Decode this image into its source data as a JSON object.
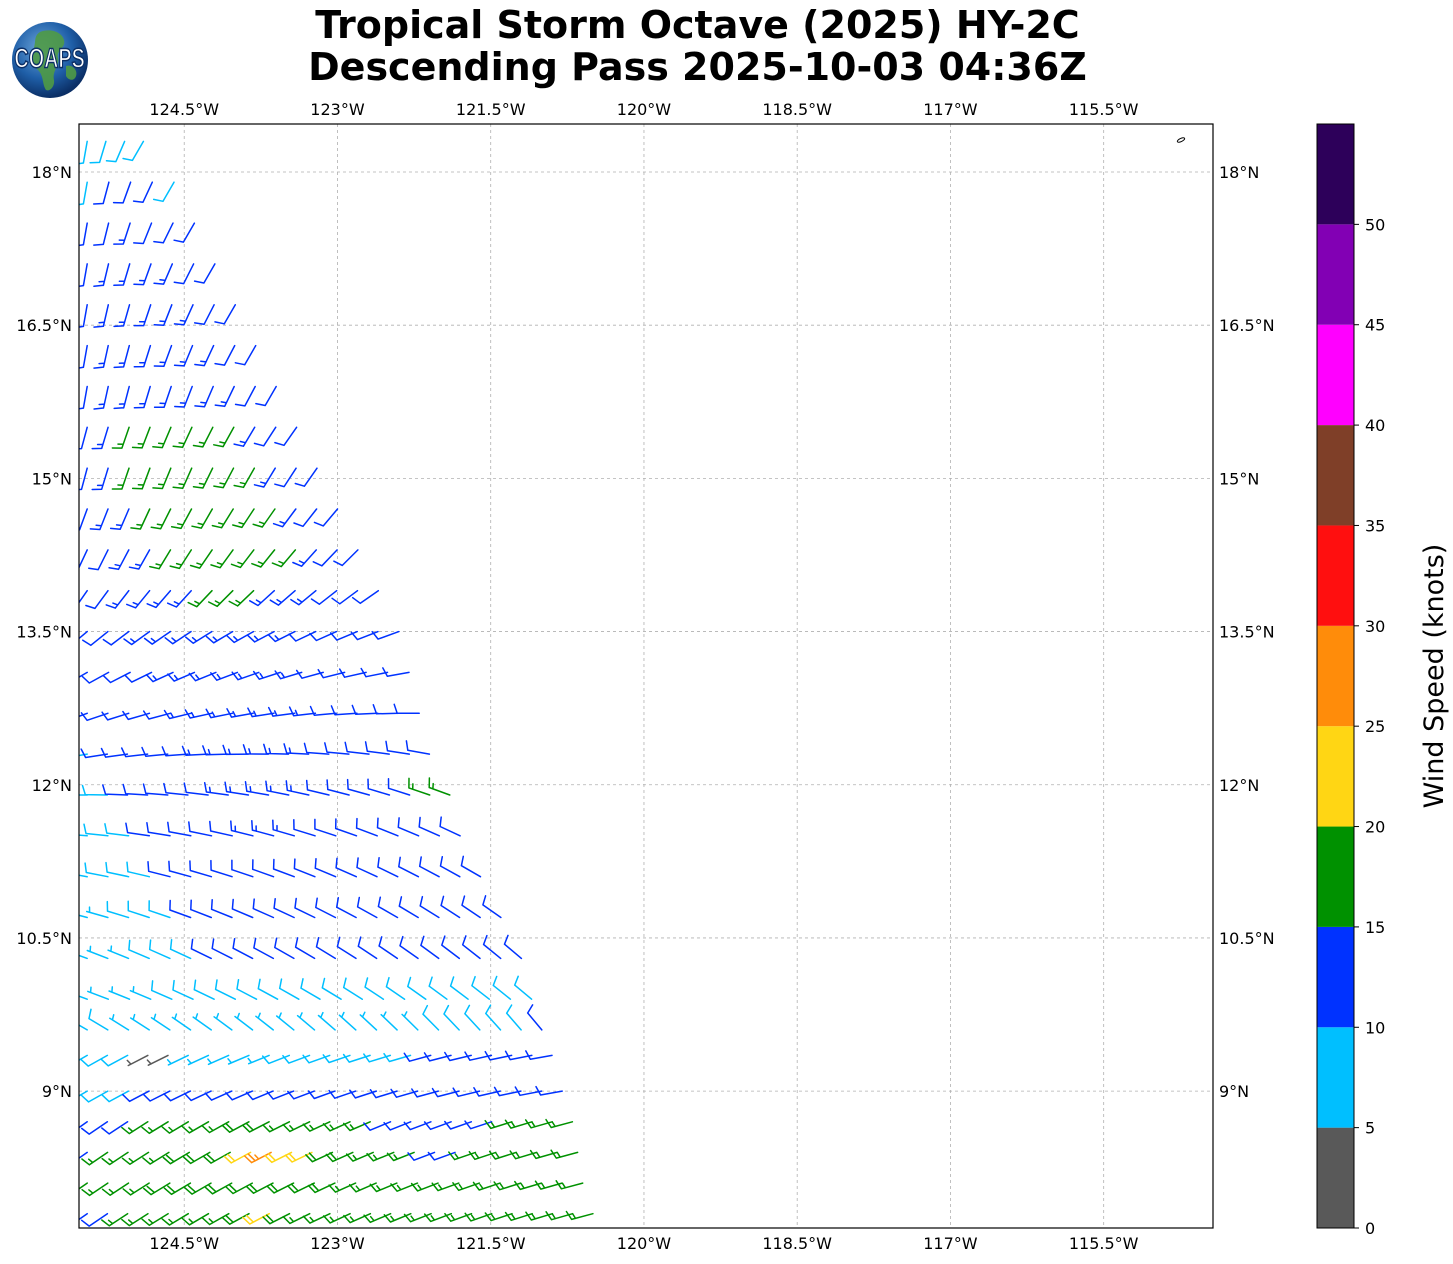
{
  "title_line1": "Tropical Storm Octave (2025) HY-2C",
  "title_line2": "Descending Pass 2025-10-03 04:36Z",
  "logo": {
    "text": "COAPS",
    "icon": "globe-icon"
  },
  "chart_data": {
    "type": "wind-barb-map",
    "x_ticks": [
      "124.5°W",
      "123°W",
      "121.5°W",
      "120°W",
      "118.5°W",
      "117°W",
      "115.5°W"
    ],
    "x_tick_values": [
      -124.5,
      -123,
      -121.5,
      -120,
      -118.5,
      -117,
      -115.5
    ],
    "y_ticks": [
      "18°N",
      "16.5°N",
      "15°N",
      "13.5°N",
      "12°N",
      "10.5°N",
      "9°N"
    ],
    "y_tick_values": [
      18,
      16.5,
      15,
      13.5,
      12,
      10.5,
      9
    ],
    "xlim": [
      -125.53,
      -114.43
    ],
    "ylim": [
      7.66,
      18.47
    ],
    "grid": true,
    "colorbar": {
      "label": "Wind Speed (knots)",
      "ticks": [
        "0",
        "5",
        "10",
        "15",
        "20",
        "25",
        "30",
        "35",
        "40",
        "45",
        "50"
      ],
      "range": [
        0,
        55
      ],
      "bins": [
        {
          "min": 0,
          "max": 5,
          "color": "#595959"
        },
        {
          "min": 5,
          "max": 10,
          "color": "#00bfff"
        },
        {
          "min": 10,
          "max": 15,
          "color": "#0032ff"
        },
        {
          "min": 15,
          "max": 20,
          "color": "#009100"
        },
        {
          "min": 20,
          "max": 25,
          "color": "#ffd614"
        },
        {
          "min": 25,
          "max": 30,
          "color": "#ff8c0a"
        },
        {
          "min": 30,
          "max": 35,
          "color": "#ff0f0f"
        },
        {
          "min": 35,
          "max": 40,
          "color": "#7f3f28"
        },
        {
          "min": 40,
          "max": 45,
          "color": "#ff00ff"
        },
        {
          "min": 45,
          "max": 50,
          "color": "#8200b4"
        },
        {
          "min": 50,
          "max": 55,
          "color": "#2d005a"
        }
      ]
    },
    "swath": {
      "description": "wind barbs along satellite swath west of 121.5W",
      "rows": [
        {
          "lat": 18.3,
          "lon_start": -125.45,
          "lon_end": -124.9,
          "speeds": [
            8,
            8,
            9,
            8
          ],
          "dir": 200
        },
        {
          "lat": 17.9,
          "lon_start": -125.45,
          "lon_end": -124.6,
          "speeds": [
            8,
            11,
            12,
            11,
            9
          ],
          "dir": 200
        },
        {
          "lat": 17.5,
          "lon_start": -125.45,
          "lon_end": -124.4,
          "speeds": [
            12,
            12,
            13,
            12,
            12,
            11
          ],
          "dir": 200
        },
        {
          "lat": 17.1,
          "lon_start": -125.45,
          "lon_end": -124.2,
          "speeds": [
            12,
            13,
            13,
            13,
            13,
            12,
            12
          ],
          "dir": 200
        },
        {
          "lat": 16.7,
          "lon_start": -125.45,
          "lon_end": -124.0,
          "speeds": [
            12,
            13,
            13,
            14,
            13,
            13,
            12,
            12
          ],
          "dir": 200
        },
        {
          "lat": 16.3,
          "lon_start": -125.45,
          "lon_end": -123.8,
          "speeds": [
            12,
            13,
            13,
            14,
            14,
            13,
            13,
            12,
            12
          ],
          "dir": 200
        },
        {
          "lat": 15.9,
          "lon_start": -125.45,
          "lon_end": -123.6,
          "speeds": [
            12,
            13,
            14,
            14,
            14,
            14,
            13,
            13,
            12,
            12
          ],
          "dir": 200
        },
        {
          "lat": 15.5,
          "lon_start": -125.45,
          "lon_end": -123.4,
          "speeds": [
            12,
            13,
            16,
            16,
            17,
            16,
            16,
            16,
            13,
            12,
            12
          ],
          "dir": 205
        },
        {
          "lat": 15.1,
          "lon_start": -125.45,
          "lon_end": -123.2,
          "speeds": [
            12,
            13,
            16,
            17,
            17,
            17,
            17,
            16,
            16,
            13,
            12,
            12
          ],
          "dir": 205
        },
        {
          "lat": 14.7,
          "lon_start": -125.45,
          "lon_end": -123.0,
          "speeds": [
            12,
            13,
            13,
            16,
            17,
            17,
            17,
            16,
            16,
            16,
            13,
            12,
            12
          ],
          "dir": 210
        },
        {
          "lat": 14.3,
          "lon_start": -125.45,
          "lon_end": -122.8,
          "speeds": [
            12,
            12,
            13,
            13,
            16,
            16,
            17,
            17,
            16,
            16,
            16,
            13,
            12,
            12
          ],
          "dir": 215
        },
        {
          "lat": 13.9,
          "lon_start": -125.45,
          "lon_end": -122.6,
          "speeds": [
            12,
            12,
            13,
            13,
            13,
            13,
            16,
            16,
            16,
            13,
            13,
            13,
            12,
            12,
            12
          ],
          "dir": 225
        },
        {
          "lat": 13.5,
          "lon_start": -125.45,
          "lon_end": -122.4,
          "speeds": [
            12,
            12,
            12,
            13,
            13,
            13,
            13,
            13,
            13,
            13,
            13,
            12,
            12,
            12,
            12,
            12
          ],
          "dir": 240
        },
        {
          "lat": 13.1,
          "lon_start": -125.45,
          "lon_end": -122.3,
          "speeds": [
            11,
            12,
            12,
            12,
            13,
            13,
            13,
            13,
            13,
            13,
            13,
            12,
            12,
            12,
            12,
            12
          ],
          "dir": 250
        },
        {
          "lat": 12.7,
          "lon_start": -125.45,
          "lon_end": -122.2,
          "speeds": [
            10,
            11,
            12,
            12,
            12,
            13,
            13,
            13,
            13,
            13,
            13,
            13,
            12,
            12,
            12,
            12,
            12
          ],
          "dir": 260
        },
        {
          "lat": 12.3,
          "lon_start": -125.45,
          "lon_end": -122.1,
          "speeds": [
            9,
            10,
            11,
            12,
            12,
            12,
            13,
            13,
            13,
            13,
            13,
            13,
            12,
            12,
            12,
            12,
            12,
            12
          ],
          "dir": 270
        },
        {
          "lat": 11.9,
          "lon_start": -125.45,
          "lon_end": -121.9,
          "speeds": [
            8,
            9,
            10,
            11,
            12,
            12,
            12,
            13,
            13,
            13,
            13,
            13,
            12,
            12,
            12,
            12,
            12,
            16,
            16
          ],
          "dir": 280
        },
        {
          "lat": 11.5,
          "lon_start": -125.45,
          "lon_end": -121.8,
          "speeds": [
            8,
            8,
            9,
            10,
            11,
            12,
            12,
            12,
            13,
            13,
            13,
            12,
            12,
            12,
            12,
            12,
            12,
            12,
            12
          ],
          "dir": 285
        },
        {
          "lat": 11.1,
          "lon_start": -125.45,
          "lon_end": -121.6,
          "speeds": [
            7,
            8,
            8,
            9,
            10,
            11,
            12,
            12,
            12,
            12,
            12,
            12,
            12,
            12,
            12,
            12,
            12,
            12,
            12,
            12
          ],
          "dir": 290
        },
        {
          "lat": 10.7,
          "lon_start": -125.45,
          "lon_end": -121.4,
          "speeds": [
            7,
            7,
            8,
            8,
            9,
            10,
            11,
            11,
            12,
            12,
            12,
            12,
            12,
            12,
            12,
            12,
            12,
            12,
            12,
            12,
            12
          ],
          "dir": 295
        },
        {
          "lat": 10.3,
          "lon_start": -125.45,
          "lon_end": -121.2,
          "speeds": [
            7,
            7,
            7,
            8,
            8,
            9,
            10,
            10,
            11,
            11,
            11,
            11,
            11,
            11,
            11,
            11,
            11,
            11,
            11,
            11,
            11,
            11
          ],
          "dir": 300
        },
        {
          "lat": 9.9,
          "lon_start": -125.45,
          "lon_end": -121.1,
          "speeds": [
            7,
            7,
            7,
            7,
            8,
            8,
            8,
            9,
            9,
            9,
            9,
            9,
            9,
            9,
            9,
            9,
            8,
            8,
            8,
            8,
            9,
            9
          ],
          "dir": 300
        },
        {
          "lat": 9.6,
          "lon_start": -125.45,
          "lon_end": -121.0,
          "speeds": [
            8,
            8,
            7,
            7,
            7,
            7,
            7,
            7,
            7,
            7,
            7,
            7,
            7,
            7,
            7,
            7,
            7,
            8,
            8,
            8,
            8,
            9,
            10
          ],
          "dir": 310
        },
        {
          "lat": 9.35,
          "lon_start": -125.45,
          "lon_end": -120.9,
          "speeds": [
            8,
            8,
            8,
            4,
            4,
            7,
            7,
            7,
            7,
            7,
            8,
            8,
            8,
            9,
            9,
            9,
            9,
            10,
            11,
            11,
            11,
            12,
            12,
            12
          ],
          "dir": 250
        },
        {
          "lat": 9.0,
          "lon_start": -125.45,
          "lon_end": -120.8,
          "speeds": [
            8,
            8,
            9,
            10,
            11,
            12,
            12,
            12,
            12,
            12,
            12,
            12,
            12,
            12,
            12,
            12,
            12,
            12,
            12,
            12,
            12,
            12,
            12,
            12
          ],
          "dir": 250
        },
        {
          "lat": 8.7,
          "lon_start": -125.45,
          "lon_end": -120.7,
          "speeds": [
            12,
            12,
            12,
            16,
            16,
            16,
            17,
            17,
            18,
            18,
            17,
            17,
            16,
            16,
            16,
            12,
            12,
            12,
            12,
            12,
            12,
            16,
            16,
            16,
            16
          ],
          "dir": 245
        },
        {
          "lat": 8.4,
          "lon_start": -125.45,
          "lon_end": -120.65,
          "speeds": [
            12,
            16,
            16,
            17,
            17,
            18,
            19,
            19,
            22,
            26,
            22,
            22,
            19,
            18,
            17,
            16,
            16,
            12,
            12,
            16,
            16,
            17,
            17,
            16,
            16
          ],
          "dir": 245
        },
        {
          "lat": 8.1,
          "lon_start": -125.45,
          "lon_end": -120.6,
          "speeds": [
            16,
            16,
            17,
            17,
            18,
            18,
            19,
            19,
            19,
            19,
            19,
            18,
            18,
            17,
            17,
            16,
            16,
            16,
            16,
            16,
            17,
            17,
            16,
            16,
            16
          ],
          "dir": 245
        },
        {
          "lat": 7.8,
          "lon_start": -125.45,
          "lon_end": -120.5,
          "speeds": [
            12,
            12,
            16,
            16,
            17,
            17,
            17,
            17,
            18,
            22,
            18,
            17,
            17,
            17,
            16,
            16,
            16,
            16,
            16,
            16,
            16,
            16,
            17,
            17,
            16,
            16
          ],
          "dir": 245
        }
      ]
    }
  }
}
